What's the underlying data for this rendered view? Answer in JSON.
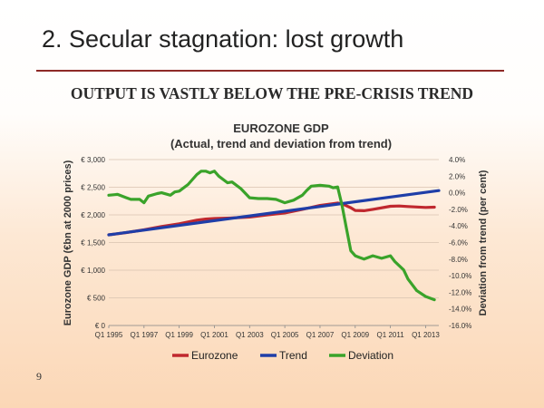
{
  "slide": {
    "title": "2. Secular stagnation: lost growth",
    "headline": "OUTPUT IS VASTLY BELOW THE PRE-CRISIS TREND",
    "page_number": "9"
  },
  "colors": {
    "eurozone": "#c0282e",
    "trend": "#1f3ea8",
    "deviation": "#3aa32a",
    "title_rule": "#8e2a26",
    "gridline": "#d9c3b0"
  },
  "chart_data": {
    "type": "line",
    "title": "EUROZONE GDP",
    "subtitle": "(Actual, trend and deviation from trend)",
    "ylabel": "Eurozone GDP (€bn at 2000 prices)",
    "y2label": "Deviation from trend (per cent)",
    "ylim": [
      0,
      3000
    ],
    "y2lim": [
      -16,
      4
    ],
    "y_ticks": [
      "€ 0",
      "€ 500",
      "€ 1,000",
      "€ 1,500",
      "€ 2,000",
      "€ 2,500",
      "€ 3,000"
    ],
    "y2_ticks": [
      "-16.0%",
      "-14.0%",
      "-12.0%",
      "-10.0%",
      "-8.0%",
      "-6.0%",
      "-4.0%",
      "-2.0%",
      "0.0%",
      "2.0%",
      "4.0%"
    ],
    "x_ticks": [
      "Q1 1995",
      "Q1 1997",
      "Q1 1999",
      "Q1 2001",
      "Q1 2003",
      "Q1 2005",
      "Q1 2007",
      "Q1 2009",
      "Q1 2011",
      "Q1 2013"
    ],
    "xlim": [
      1995.0,
      2013.75
    ],
    "grid": true,
    "legend_position": "bottom",
    "series": [
      {
        "name": "Eurozone",
        "axis": "left",
        "x": [
          1995.0,
          1996.0,
          1997.0,
          1998.0,
          1999.0,
          2000.0,
          2000.5,
          2001.0,
          2002.0,
          2003.0,
          2004.0,
          2005.0,
          2006.0,
          2007.0,
          2008.0,
          2008.25,
          2008.75,
          2009.0,
          2009.5,
          2010.0,
          2011.0,
          2011.5,
          2012.0,
          2013.0,
          2013.5
        ],
        "values": [
          1640,
          1680,
          1730,
          1790,
          1840,
          1905,
          1925,
          1935,
          1945,
          1960,
          2000,
          2035,
          2100,
          2170,
          2215,
          2200,
          2130,
          2080,
          2075,
          2100,
          2155,
          2160,
          2150,
          2135,
          2140
        ]
      },
      {
        "name": "Trend",
        "axis": "left",
        "x": [
          1995.0,
          2013.75
        ],
        "values": [
          1640,
          2440
        ]
      },
      {
        "name": "Deviation",
        "axis": "right",
        "x": [
          1995.0,
          1995.5,
          1996.0,
          1996.25,
          1996.75,
          1997.0,
          1997.25,
          1997.75,
          1998.0,
          1998.5,
          1998.75,
          1999.0,
          1999.5,
          2000.0,
          2000.25,
          2000.5,
          2000.75,
          2001.0,
          2001.25,
          2001.75,
          2002.0,
          2002.5,
          2003.0,
          2003.5,
          2004.0,
          2004.5,
          2005.0,
          2005.5,
          2006.0,
          2006.25,
          2006.5,
          2007.0,
          2007.5,
          2007.75,
          2008.0,
          2008.25,
          2008.5,
          2008.75,
          2009.0,
          2009.25,
          2009.5,
          2010.0,
          2010.5,
          2011.0,
          2011.25,
          2011.75,
          2012.0,
          2012.5,
          2013.0,
          2013.5
        ],
        "values": [
          -0.3,
          -0.2,
          -0.6,
          -0.8,
          -0.8,
          -1.2,
          -0.4,
          -0.1,
          0.0,
          -0.3,
          0.1,
          0.2,
          1.0,
          2.2,
          2.6,
          2.6,
          2.4,
          2.6,
          2.0,
          1.2,
          1.3,
          0.5,
          -0.6,
          -0.7,
          -0.7,
          -0.8,
          -1.2,
          -0.9,
          -0.3,
          0.3,
          0.8,
          0.9,
          0.8,
          0.6,
          0.7,
          -1.5,
          -4.3,
          -7.0,
          -7.6,
          -7.8,
          -8.0,
          -7.6,
          -7.9,
          -7.6,
          -8.3,
          -9.3,
          -10.4,
          -11.8,
          -12.5,
          -12.9
        ]
      }
    ]
  }
}
